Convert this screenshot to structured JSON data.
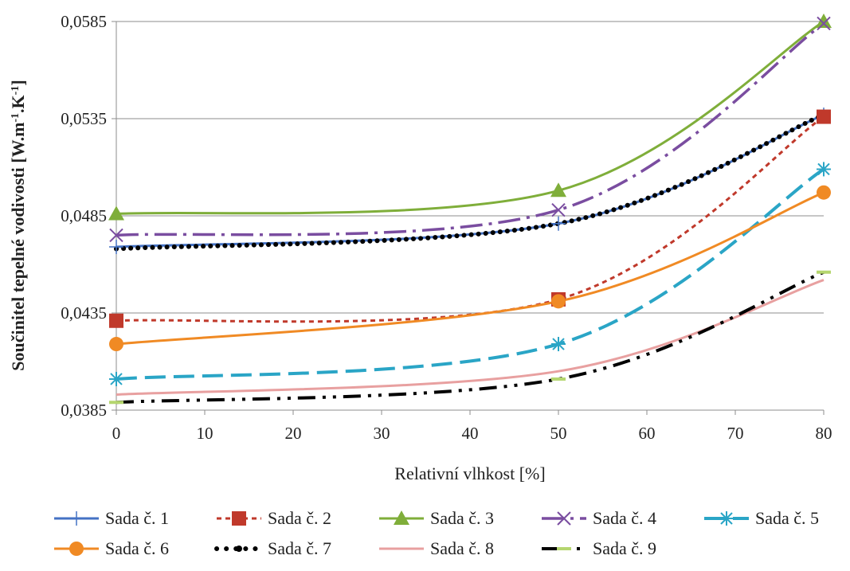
{
  "chart_data": {
    "type": "line",
    "title": "",
    "xlabel": "Relativní vlhkost [%]",
    "ylabel": "Součinitel tepelné vodivosti [W.m-1.K-1]",
    "ylabel_parts": [
      "Součinitel tepelné vodivosti [W.m",
      "-1",
      ".K",
      "-1",
      "]"
    ],
    "x_ticks": [
      "0",
      "10",
      "20",
      "30",
      "40",
      "50",
      "60",
      "70",
      "80"
    ],
    "x_tick_values": [
      0,
      10,
      20,
      30,
      40,
      50,
      60,
      70,
      80
    ],
    "y_ticks": [
      "0,0385",
      "0,0435",
      "0,0485",
      "0,0535",
      "0,0585"
    ],
    "y_tick_values": [
      0.0385,
      0.0435,
      0.0485,
      0.0535,
      0.0585
    ],
    "xlim": [
      0,
      80
    ],
    "ylim": [
      0.0385,
      0.0585
    ],
    "grid": "horizontal",
    "legend_position": "bottom",
    "x": [
      0,
      50,
      80
    ],
    "series": [
      {
        "name": "Sada č. 1",
        "values": [
          0.0469,
          0.0481,
          0.0537
        ],
        "color": "#4472C4",
        "dash": "",
        "width": 3,
        "marker": "plus"
      },
      {
        "name": "Sada č. 2",
        "values": [
          0.0431,
          0.0442,
          0.0536
        ],
        "color": "#C0392B",
        "dash": "6 5",
        "width": 3,
        "marker": "square"
      },
      {
        "name": "Sada č. 3",
        "values": [
          0.0486,
          0.0498,
          0.0585
        ],
        "color": "#7FAE3A",
        "dash": "",
        "width": 3,
        "marker": "triangle"
      },
      {
        "name": "Sada č. 4",
        "values": [
          0.0475,
          0.0488,
          0.0584
        ],
        "color": "#7A4DA0",
        "dash": "28 8 4 8",
        "width": 3.5,
        "marker": "x"
      },
      {
        "name": "Sada č. 5",
        "values": [
          0.0401,
          0.0419,
          0.0509
        ],
        "color": "#2AA5C6",
        "dash": "26 10",
        "width": 4,
        "marker": "star"
      },
      {
        "name": "Sada č. 6",
        "values": [
          0.0419,
          0.0441,
          0.0497
        ],
        "color": "#F08A24",
        "dash": "",
        "width": 3,
        "marker": "circle"
      },
      {
        "name": "Sada č. 7",
        "values": [
          0.0468,
          0.0481,
          0.0537
        ],
        "color": "#000000",
        "dash": "0.1 9",
        "width": 6,
        "marker": "dot"
      },
      {
        "name": "Sada č. 8",
        "values": [
          0.0393,
          0.0405,
          0.0452
        ],
        "color": "#E8A0A0",
        "dash": "",
        "width": 3,
        "marker": "none"
      },
      {
        "name": "Sada č. 9",
        "values": [
          0.0389,
          0.0401,
          0.0456
        ],
        "color": "#000000",
        "dash": "22 9 4 9 4 9",
        "width": 4,
        "marker": "dash"
      }
    ]
  }
}
